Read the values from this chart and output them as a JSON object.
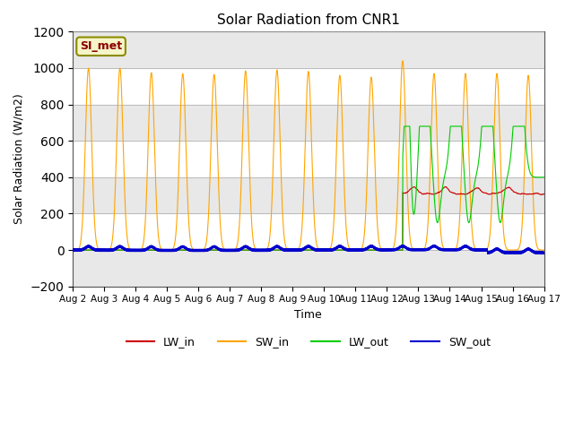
{
  "title": "Solar Radiation from CNR1",
  "xlabel": "Time",
  "ylabel": "Solar Radiation (W/m2)",
  "ylim": [
    -200,
    1200
  ],
  "xlim_days": [
    2,
    17
  ],
  "background_color": "#ffffff",
  "annotation_label": "SI_met",
  "annotation_bg": "#f5f5c8",
  "annotation_border": "#8b0000",
  "legend_entries": [
    "LW_in",
    "SW_in",
    "LW_out",
    "SW_out"
  ],
  "legend_colors": [
    "#cc0000",
    "#ffa500",
    "#00cc00",
    "#0000cc"
  ],
  "sw_in_peaks": [
    2.5,
    3.5,
    4.5,
    5.5,
    6.5,
    7.5,
    8.5,
    9.5,
    10.5,
    11.5,
    12.5,
    13.5,
    14.5,
    15.5,
    16.5
  ],
  "sw_in_peak_values": [
    1000,
    1000,
    975,
    970,
    965,
    985,
    990,
    982,
    960,
    950,
    1040,
    970,
    970,
    970,
    960
  ],
  "tick_days": [
    2,
    3,
    4,
    5,
    6,
    7,
    8,
    9,
    10,
    11,
    12,
    13,
    14,
    15,
    16,
    17
  ],
  "band_ranges": [
    [
      -200,
      0
    ],
    [
      200,
      400
    ],
    [
      600,
      800
    ],
    [
      1000,
      1200
    ]
  ],
  "band_color": "#e8e8e8"
}
